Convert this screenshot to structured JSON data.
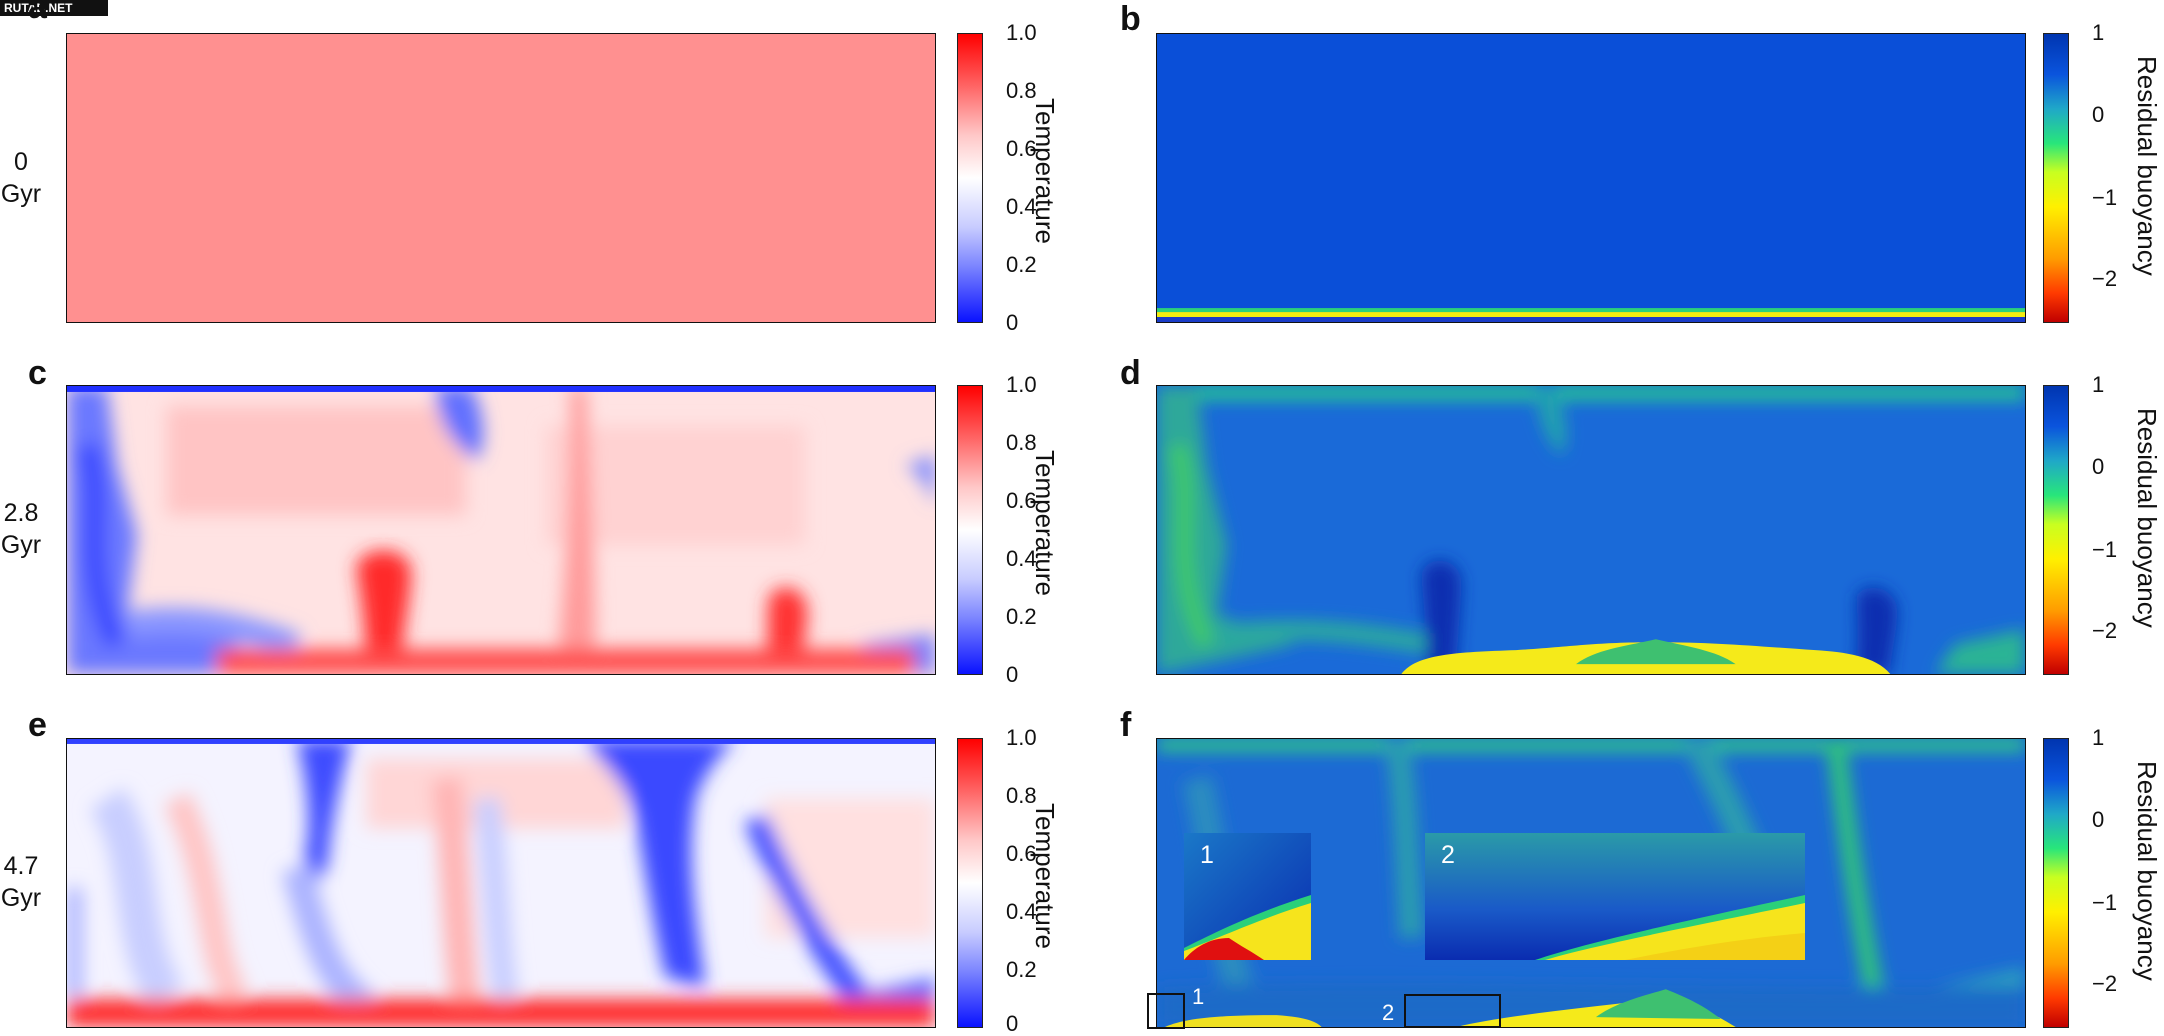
{
  "watermark": "RUTAB.NET",
  "panels": {
    "a": "a",
    "b": "b",
    "c": "c",
    "d": "d",
    "e": "e",
    "f": "f"
  },
  "rows": [
    {
      "value": "0",
      "unit": "Gyr"
    },
    {
      "value": "2.8",
      "unit": "Gyr"
    },
    {
      "value": "4.7",
      "unit": "Gyr"
    }
  ],
  "temperature_colorbar": {
    "label": "Temperature",
    "ticks": [
      "1.0",
      "0.8",
      "0.6",
      "0.4",
      "0.2",
      "0"
    ],
    "colors": [
      "#0a12ff",
      "#ffffff",
      "#ff0000"
    ]
  },
  "buoyancy_colorbar": {
    "label": "Residual buoyancy",
    "ticks": [
      "1",
      "0",
      "−1",
      "−2"
    ],
    "colors": [
      "#0035b0",
      "#28e67a",
      "#fff000",
      "#c00000"
    ]
  },
  "insets": {
    "inset1": "1",
    "inset2": "2",
    "box1": "1",
    "box2": "2"
  }
}
